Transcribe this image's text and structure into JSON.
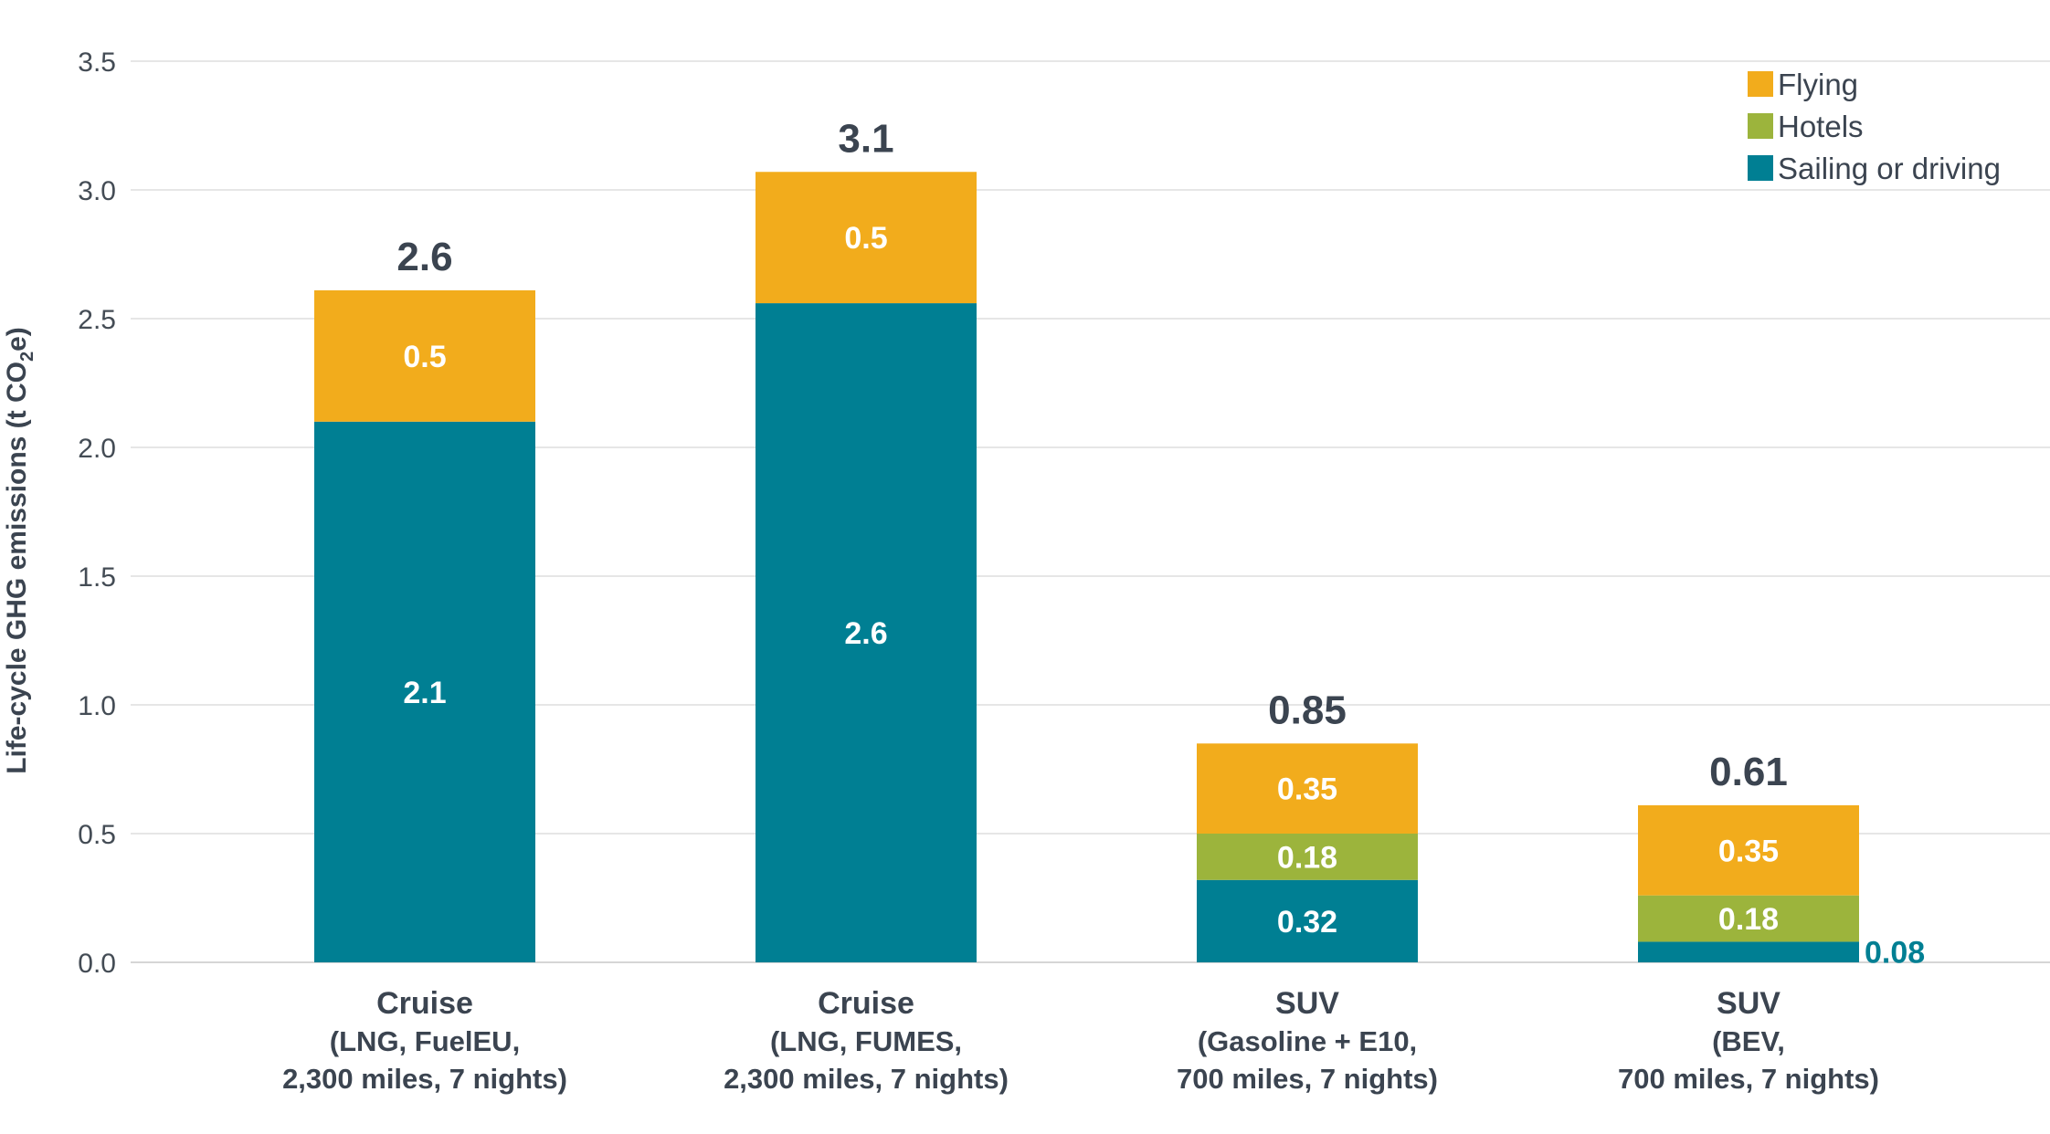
{
  "chart_data": {
    "type": "bar",
    "stacked": true,
    "ylabel": "Life-cycle GHG emissions (t CO",
    "ylabel_sub": "2",
    "ylabel_end": "e)",
    "ylim": [
      0,
      3.5
    ],
    "yticks": [
      "0.0",
      "0.5",
      "1.0",
      "1.5",
      "2.0",
      "2.5",
      "3.0",
      "3.5"
    ],
    "grid": true,
    "legend_position": "top-right",
    "categories": [
      {
        "title": "Cruise",
        "sub1": "(LNG, FuelEU,",
        "sub2": "2,300 miles, 7 nights)"
      },
      {
        "title": "Cruise",
        "sub1": "(LNG, FUMES,",
        "sub2": "2,300 miles, 7 nights)"
      },
      {
        "title": "SUV",
        "sub1": "(Gasoline + E10,",
        "sub2": "700 miles, 7 nights)"
      },
      {
        "title": "SUV",
        "sub1": "(BEV,",
        "sub2": "700 miles, 7 nights)"
      }
    ],
    "series": [
      {
        "name": "Sailing or driving",
        "color": "#007f93",
        "values": [
          2.1,
          2.56,
          0.32,
          0.08
        ],
        "labels": [
          "2.1",
          "2.6",
          "0.32",
          "0.08"
        ]
      },
      {
        "name": "Hotels",
        "color": "#9cb43c",
        "values": [
          0,
          0,
          0.18,
          0.18
        ],
        "labels": [
          "",
          "",
          "0.18",
          "0.18"
        ]
      },
      {
        "name": "Flying",
        "color": "#f2ac1c",
        "values": [
          0.51,
          0.51,
          0.35,
          0.35
        ],
        "labels": [
          "0.5",
          "0.5",
          "0.35",
          "0.35"
        ]
      }
    ],
    "totals": [
      "2.6",
      "3.1",
      "0.85",
      "0.61"
    ],
    "legend": [
      {
        "name": "Flying",
        "color": "#f2ac1c"
      },
      {
        "name": "Hotels",
        "color": "#9cb43c"
      },
      {
        "name": "Sailing or driving",
        "color": "#007f93"
      }
    ]
  }
}
